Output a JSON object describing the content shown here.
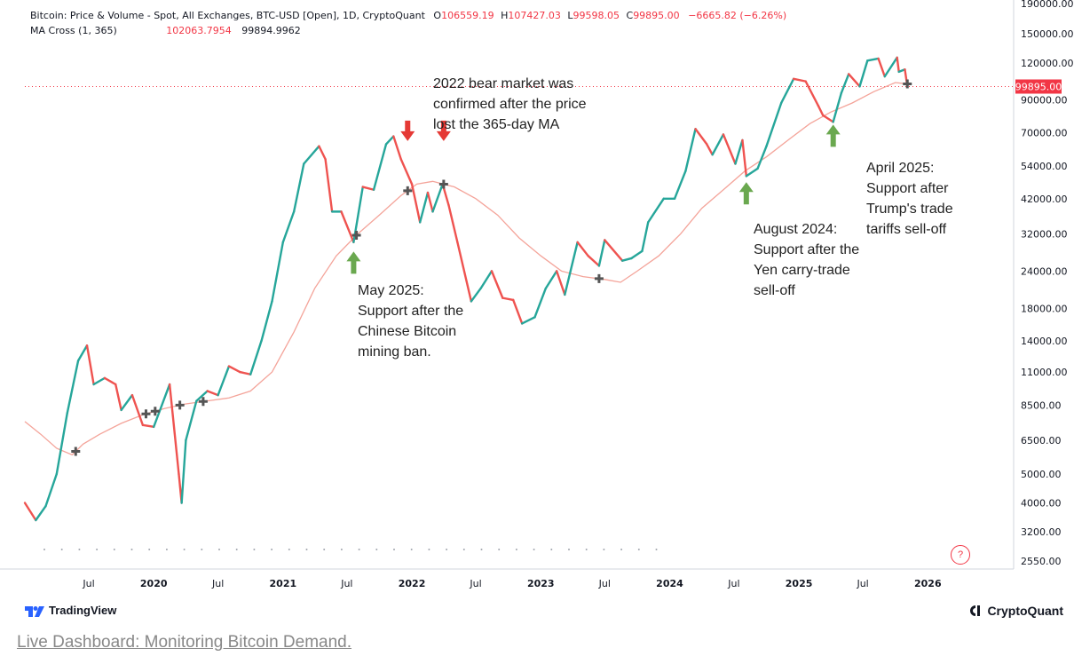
{
  "legend": {
    "series_title": "Bitcoin: Price & Volume - Spot, All Exchanges, BTC-USD [Open], 1D, CryptoQuant",
    "o_label": "O",
    "o_value": "106559.19",
    "h_label": "H",
    "h_value": "107427.03",
    "l_label": "L",
    "l_value": "99598.05",
    "c_label": "C",
    "c_value": "99895.00",
    "change": "−6665.82 (−6.26%)",
    "ma_title": "MA Cross (1, 365)",
    "ma_value_1": "102063.7954",
    "ma_value_2": "99894.9962"
  },
  "last_price_label": "99895.00",
  "annotations": {
    "bear_market": "2022 bear market was confirmed after the price lost the 365-day MA",
    "may_2025": "May 2025: Support after the Chinese Bitcoin mining ban.",
    "august_2024": "August 2024: Support after the Yen carry-trade sell-off",
    "april_2025": "April 2025: Support after Trump's trade tariffs sell-off"
  },
  "footer": {
    "tradingview": "TradingView",
    "cryptoquant": "CryptoQuant",
    "link_text": "Live Dashboard: Monitoring Bitcoin Demand.",
    "help": "?"
  },
  "colors": {
    "up": "#26a69a",
    "down": "#ef5350",
    "ma_line": "#f4a49a",
    "down_arrow": "#e53935",
    "up_arrow": "#6aa84f",
    "price_badge": "#f23645"
  },
  "icons": {
    "tradingview_logo": "tradingview-logo-icon",
    "cryptoquant_logo": "cryptoquant-logo-icon",
    "cross_marker": "cross-marker-icon",
    "up_arrow": "up-arrow-icon",
    "down_arrow": "down-arrow-icon"
  },
  "chart_data": {
    "type": "line",
    "y_scale": "log",
    "ylim": [
      2400,
      195000
    ],
    "x_range": [
      "2019-01-01",
      "2026-09-01"
    ],
    "y_ticks": [
      "190000.00",
      "150000.00",
      "120000.00",
      "90000.00",
      "70000.00",
      "54000.00",
      "42000.00",
      "32000.00",
      "24000.00",
      "18000.00",
      "14000.00",
      "11000.00",
      "8500.00",
      "6500.00",
      "5000.00",
      "4000.00",
      "3200.00",
      "2550.00"
    ],
    "x_ticks": [
      {
        "label": "Jul",
        "date": "2019-07-01"
      },
      {
        "label": "2020",
        "date": "2020-01-01"
      },
      {
        "label": "Jul",
        "date": "2020-07-01"
      },
      {
        "label": "2021",
        "date": "2021-01-01"
      },
      {
        "label": "Jul",
        "date": "2021-07-01"
      },
      {
        "label": "2022",
        "date": "2022-01-01"
      },
      {
        "label": "Jul",
        "date": "2022-07-01"
      },
      {
        "label": "2023",
        "date": "2023-01-01"
      },
      {
        "label": "Jul",
        "date": "2023-07-01"
      },
      {
        "label": "2024",
        "date": "2024-01-01"
      },
      {
        "label": "Jul",
        "date": "2024-07-01"
      },
      {
        "label": "2025",
        "date": "2025-01-01"
      },
      {
        "label": "Jul",
        "date": "2025-07-01"
      },
      {
        "label": "2026",
        "date": "2026-01-01"
      }
    ],
    "series": [
      {
        "kind": "price",
        "points": [
          [
            "2019-01-01",
            4000
          ],
          [
            "2019-02-01",
            3500
          ],
          [
            "2019-03-01",
            3900
          ],
          [
            "2019-04-01",
            5000
          ],
          [
            "2019-05-01",
            8000
          ],
          [
            "2019-06-01",
            12000
          ],
          [
            "2019-06-26",
            13500
          ],
          [
            "2019-07-15",
            10000
          ],
          [
            "2019-08-15",
            10500
          ],
          [
            "2019-09-15",
            10000
          ],
          [
            "2019-10-01",
            8200
          ],
          [
            "2019-11-01",
            9200
          ],
          [
            "2019-12-01",
            7300
          ],
          [
            "2020-01-01",
            7200
          ],
          [
            "2020-02-15",
            10000
          ],
          [
            "2020-03-12",
            5000
          ],
          [
            "2020-03-20",
            4000
          ],
          [
            "2020-04-01",
            6500
          ],
          [
            "2020-05-01",
            8800
          ],
          [
            "2020-06-01",
            9500
          ],
          [
            "2020-07-01",
            9200
          ],
          [
            "2020-08-01",
            11500
          ],
          [
            "2020-09-01",
            11000
          ],
          [
            "2020-10-01",
            10800
          ],
          [
            "2020-11-01",
            14000
          ],
          [
            "2020-12-01",
            19000
          ],
          [
            "2021-01-01",
            30000
          ],
          [
            "2021-02-01",
            38000
          ],
          [
            "2021-03-01",
            55000
          ],
          [
            "2021-04-13",
            63000
          ],
          [
            "2021-05-01",
            57000
          ],
          [
            "2021-05-20",
            38000
          ],
          [
            "2021-06-15",
            38000
          ],
          [
            "2021-07-20",
            30000
          ],
          [
            "2021-08-15",
            46000
          ],
          [
            "2021-09-15",
            45000
          ],
          [
            "2021-10-20",
            64000
          ],
          [
            "2021-11-10",
            68000
          ],
          [
            "2021-12-01",
            57000
          ],
          [
            "2022-01-01",
            47000
          ],
          [
            "2022-01-24",
            35000
          ],
          [
            "2022-02-15",
            44000
          ],
          [
            "2022-03-01",
            38000
          ],
          [
            "2022-03-29",
            47000
          ],
          [
            "2022-04-15",
            40000
          ],
          [
            "2022-05-10",
            30000
          ],
          [
            "2022-06-18",
            19000
          ],
          [
            "2022-07-15",
            21000
          ],
          [
            "2022-08-15",
            24000
          ],
          [
            "2022-09-15",
            19500
          ],
          [
            "2022-10-15",
            19200
          ],
          [
            "2022-11-09",
            16000
          ],
          [
            "2022-12-15",
            16800
          ],
          [
            "2023-01-15",
            21000
          ],
          [
            "2023-02-15",
            24000
          ],
          [
            "2023-03-10",
            20000
          ],
          [
            "2023-04-15",
            30000
          ],
          [
            "2023-05-15",
            27000
          ],
          [
            "2023-06-15",
            25000
          ],
          [
            "2023-07-01",
            30500
          ],
          [
            "2023-08-20",
            26000
          ],
          [
            "2023-09-15",
            26500
          ],
          [
            "2023-10-15",
            28000
          ],
          [
            "2023-11-01",
            35000
          ],
          [
            "2023-12-15",
            42000
          ],
          [
            "2024-01-15",
            42000
          ],
          [
            "2024-02-15",
            52000
          ],
          [
            "2024-03-14",
            72000
          ],
          [
            "2024-04-15",
            64000
          ],
          [
            "2024-05-01",
            59000
          ],
          [
            "2024-06-01",
            69000
          ],
          [
            "2024-07-05",
            55000
          ],
          [
            "2024-07-25",
            66000
          ],
          [
            "2024-08-05",
            50000
          ],
          [
            "2024-09-06",
            53000
          ],
          [
            "2024-10-01",
            63000
          ],
          [
            "2024-11-12",
            88000
          ],
          [
            "2024-12-17",
            106000
          ],
          [
            "2025-01-20",
            104000
          ],
          [
            "2025-02-25",
            86000
          ],
          [
            "2025-03-10",
            80000
          ],
          [
            "2025-04-08",
            76000
          ],
          [
            "2025-05-01",
            95000
          ],
          [
            "2025-05-22",
            110000
          ],
          [
            "2025-06-22",
            100000
          ],
          [
            "2025-07-14",
            122000
          ],
          [
            "2025-08-14",
            124000
          ],
          [
            "2025-09-01",
            108000
          ],
          [
            "2025-10-06",
            125000
          ],
          [
            "2025-10-11",
            112000
          ],
          [
            "2025-10-28",
            114000
          ],
          [
            "2025-11-04",
            100000
          ]
        ]
      },
      {
        "kind": "ma",
        "name": "",
        "points": [
          [
            "2019-01-01",
            7500
          ],
          [
            "2019-02-15",
            6800
          ],
          [
            "2019-04-01",
            6100
          ],
          [
            "2019-05-15",
            5800
          ],
          [
            "2019-06-15",
            6300
          ],
          [
            "2019-08-01",
            6800
          ],
          [
            "2019-10-01",
            7400
          ],
          [
            "2019-12-01",
            7900
          ],
          [
            "2020-02-01",
            8300
          ],
          [
            "2020-04-01",
            8600
          ],
          [
            "2020-06-01",
            8800
          ],
          [
            "2020-08-01",
            9000
          ],
          [
            "2020-10-01",
            9500
          ],
          [
            "2020-12-01",
            11000
          ],
          [
            "2021-02-01",
            15000
          ],
          [
            "2021-04-01",
            21000
          ],
          [
            "2021-06-01",
            27000
          ],
          [
            "2021-08-01",
            32000
          ],
          [
            "2021-10-01",
            37000
          ],
          [
            "2021-12-01",
            43000
          ],
          [
            "2022-01-15",
            47000
          ],
          [
            "2022-03-01",
            48000
          ],
          [
            "2022-05-01",
            46000
          ],
          [
            "2022-07-01",
            42000
          ],
          [
            "2022-09-01",
            37000
          ],
          [
            "2022-11-01",
            31000
          ],
          [
            "2023-01-01",
            27000
          ],
          [
            "2023-03-01",
            24000
          ],
          [
            "2023-05-01",
            23000
          ],
          [
            "2023-07-01",
            22500
          ],
          [
            "2023-08-15",
            22000
          ],
          [
            "2023-10-01",
            24000
          ],
          [
            "2023-12-01",
            27000
          ],
          [
            "2024-02-01",
            32000
          ],
          [
            "2024-04-01",
            39000
          ],
          [
            "2024-06-01",
            45000
          ],
          [
            "2024-08-01",
            52000
          ],
          [
            "2024-10-01",
            58000
          ],
          [
            "2024-12-01",
            66000
          ],
          [
            "2025-02-01",
            75000
          ],
          [
            "2025-04-01",
            82000
          ],
          [
            "2025-06-01",
            88000
          ],
          [
            "2025-08-01",
            96000
          ],
          [
            "2025-10-01",
            103000
          ],
          [
            "2025-11-04",
            102000
          ]
        ]
      }
    ],
    "ma_cross_markers": [
      "2019-05-25",
      "2019-12-10",
      "2020-01-05",
      "2020-03-15",
      "2020-05-20",
      "2021-07-28",
      "2021-12-20",
      "2022-04-01",
      "2023-06-15",
      "2025-11-04"
    ],
    "arrows": [
      {
        "kind": "down",
        "date": "2021-12-20",
        "value": 66000
      },
      {
        "kind": "down",
        "date": "2022-04-01",
        "value": 66000
      },
      {
        "kind": "up",
        "date": "2021-07-20",
        "value": 24000
      },
      {
        "kind": "up",
        "date": "2024-08-05",
        "value": 41000
      },
      {
        "kind": "up",
        "date": "2025-04-08",
        "value": 64000
      }
    ],
    "last_price": 99895,
    "grid": false,
    "title": "",
    "xlabel": "",
    "ylabel": ""
  }
}
